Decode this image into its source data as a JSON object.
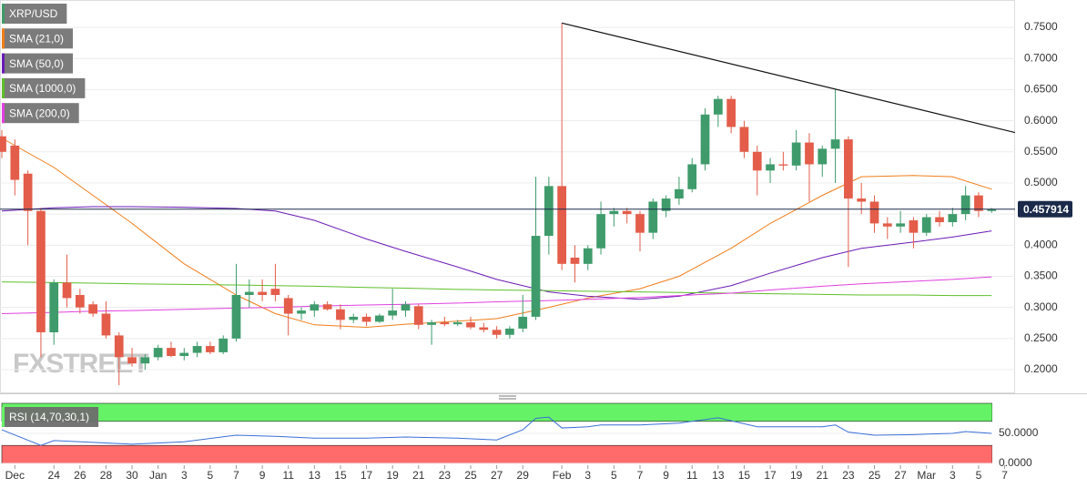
{
  "chart_data": [
    {
      "type": "candlestick",
      "watermark": "FXSTREET",
      "grid": true,
      "xlim": [
        -0.14,
        77.8
      ],
      "xticks": [
        {
          "value": 1,
          "label": "Dec"
        },
        {
          "value": 4,
          "label": "24"
        },
        {
          "value": 6,
          "label": "26"
        },
        {
          "value": 8,
          "label": "28"
        },
        {
          "value": 10,
          "label": "30"
        },
        {
          "value": 12,
          "label": "Jan"
        },
        {
          "value": 14,
          "label": "3"
        },
        {
          "value": 16,
          "label": "5"
        },
        {
          "value": 18,
          "label": "7"
        },
        {
          "value": 20,
          "label": "9"
        },
        {
          "value": 22,
          "label": "11"
        },
        {
          "value": 24,
          "label": "13"
        },
        {
          "value": 26,
          "label": "15"
        },
        {
          "value": 28,
          "label": "17"
        },
        {
          "value": 30,
          "label": "19"
        },
        {
          "value": 32,
          "label": "21"
        },
        {
          "value": 34,
          "label": "23"
        },
        {
          "value": 36,
          "label": "25"
        },
        {
          "value": 38,
          "label": "27"
        },
        {
          "value": 40,
          "label": "29"
        },
        {
          "value": 43,
          "label": "Feb"
        },
        {
          "value": 45,
          "label": "3"
        },
        {
          "value": 47,
          "label": "5"
        },
        {
          "value": 49,
          "label": "7"
        },
        {
          "value": 51,
          "label": "9"
        },
        {
          "value": 53,
          "label": "11"
        },
        {
          "value": 55,
          "label": "13"
        },
        {
          "value": 57,
          "label": "15"
        },
        {
          "value": 59,
          "label": "17"
        },
        {
          "value": 61,
          "label": "19"
        },
        {
          "value": 63,
          "label": "21"
        },
        {
          "value": 65,
          "label": "23"
        },
        {
          "value": 67,
          "label": "25"
        },
        {
          "value": 69,
          "label": "27"
        },
        {
          "value": 71,
          "label": "Mar"
        },
        {
          "value": 73,
          "label": "3"
        },
        {
          "value": 75,
          "label": "5"
        },
        {
          "value": 77,
          "label": "7"
        }
      ],
      "ylim": [
        0.162,
        0.794
      ],
      "yticks": [
        {
          "value": 0.2,
          "label": "0.2000"
        },
        {
          "value": 0.25,
          "label": "0.2500"
        },
        {
          "value": 0.3,
          "label": "0.3000"
        },
        {
          "value": 0.35,
          "label": "0.3500"
        },
        {
          "value": 0.4,
          "label": "0.4000"
        },
        {
          "value": 0.45,
          "label": "0.4500"
        },
        {
          "value": 0.5,
          "label": "0.5000"
        },
        {
          "value": 0.55,
          "label": "0.5500"
        },
        {
          "value": 0.6,
          "label": "0.6000"
        },
        {
          "value": 0.65,
          "label": "0.6500"
        },
        {
          "value": 0.7,
          "label": "0.7000"
        },
        {
          "value": 0.75,
          "label": "0.7500"
        }
      ],
      "candles": {
        "name": "XRP/USD",
        "color": "#3f9b6b",
        "up_color": "#3f9b6b",
        "down_color": "#e35d4a",
        "x": [
          0,
          1,
          2,
          3,
          4,
          5,
          6,
          7,
          8,
          9,
          10,
          11,
          12,
          13,
          14,
          15,
          16,
          17,
          18,
          19,
          20,
          21,
          22,
          23,
          24,
          25,
          26,
          27,
          28,
          29,
          30,
          31,
          32,
          33,
          34,
          35,
          36,
          37,
          38,
          39,
          40,
          41,
          42,
          43,
          44,
          45,
          46,
          47,
          48,
          49,
          50,
          51,
          52,
          53,
          54,
          55,
          56,
          57,
          58,
          59,
          60,
          61,
          62,
          63,
          64,
          65,
          66,
          67,
          68,
          69,
          70,
          71,
          72,
          73,
          74,
          75,
          76
        ],
        "open": [
          0.575,
          0.56,
          0.515,
          0.455,
          0.26,
          0.34,
          0.32,
          0.305,
          0.29,
          0.255,
          0.22,
          0.21,
          0.22,
          0.235,
          0.222,
          0.227,
          0.238,
          0.228,
          0.25,
          0.32,
          0.325,
          0.33,
          0.315,
          0.29,
          0.295,
          0.305,
          0.297,
          0.28,
          0.285,
          0.277,
          0.287,
          0.295,
          0.302,
          0.272,
          0.276,
          0.273,
          0.276,
          0.268,
          0.264,
          0.256,
          0.266,
          0.285,
          0.415,
          0.495,
          0.38,
          0.37,
          0.395,
          0.45,
          0.455,
          0.45,
          0.42,
          0.455,
          0.475,
          0.49,
          0.53,
          0.61,
          0.635,
          0.59,
          0.55,
          0.52,
          0.53,
          0.528,
          0.565,
          0.53,
          0.555,
          0.57,
          0.475,
          0.47,
          0.435,
          0.43,
          0.44,
          0.42,
          0.445,
          0.437,
          0.45,
          0.48,
          0.455
        ],
        "high": [
          0.585,
          0.57,
          0.52,
          0.46,
          0.345,
          0.385,
          0.33,
          0.31,
          0.31,
          0.26,
          0.235,
          0.225,
          0.24,
          0.245,
          0.235,
          0.245,
          0.245,
          0.255,
          0.37,
          0.345,
          0.345,
          0.37,
          0.32,
          0.3,
          0.31,
          0.31,
          0.305,
          0.29,
          0.29,
          0.29,
          0.33,
          0.31,
          0.305,
          0.28,
          0.285,
          0.28,
          0.285,
          0.275,
          0.27,
          0.27,
          0.32,
          0.51,
          0.51,
          0.757,
          0.4,
          0.4,
          0.47,
          0.46,
          0.46,
          0.455,
          0.475,
          0.48,
          0.51,
          0.54,
          0.62,
          0.64,
          0.64,
          0.6,
          0.56,
          0.54,
          0.55,
          0.585,
          0.58,
          0.56,
          0.65,
          0.575,
          0.5,
          0.48,
          0.445,
          0.455,
          0.445,
          0.45,
          0.455,
          0.46,
          0.495,
          0.485,
          0.46
        ],
        "low": [
          0.54,
          0.48,
          0.4,
          0.22,
          0.24,
          0.3,
          0.29,
          0.285,
          0.25,
          0.175,
          0.205,
          0.2,
          0.215,
          0.22,
          0.215,
          0.22,
          0.225,
          0.225,
          0.245,
          0.3,
          0.31,
          0.31,
          0.255,
          0.28,
          0.285,
          0.295,
          0.265,
          0.275,
          0.27,
          0.275,
          0.28,
          0.285,
          0.265,
          0.24,
          0.27,
          0.27,
          0.265,
          0.26,
          0.25,
          0.25,
          0.26,
          0.28,
          0.385,
          0.36,
          0.34,
          0.36,
          0.385,
          0.43,
          0.435,
          0.39,
          0.41,
          0.445,
          0.465,
          0.485,
          0.52,
          0.59,
          0.58,
          0.54,
          0.48,
          0.5,
          0.52,
          0.52,
          0.47,
          0.51,
          0.5,
          0.365,
          0.45,
          0.42,
          0.41,
          0.42,
          0.395,
          0.415,
          0.43,
          0.43,
          0.44,
          0.445,
          0.452
        ],
        "close": [
          0.55,
          0.505,
          0.455,
          0.26,
          0.34,
          0.315,
          0.3,
          0.29,
          0.255,
          0.22,
          0.21,
          0.22,
          0.235,
          0.222,
          0.227,
          0.238,
          0.228,
          0.25,
          0.32,
          0.325,
          0.32,
          0.32,
          0.29,
          0.295,
          0.305,
          0.297,
          0.28,
          0.285,
          0.277,
          0.287,
          0.295,
          0.305,
          0.272,
          0.276,
          0.273,
          0.276,
          0.268,
          0.264,
          0.256,
          0.266,
          0.285,
          0.415,
          0.495,
          0.37,
          0.37,
          0.395,
          0.45,
          0.455,
          0.45,
          0.42,
          0.47,
          0.475,
          0.49,
          0.53,
          0.61,
          0.635,
          0.59,
          0.55,
          0.52,
          0.53,
          0.528,
          0.565,
          0.53,
          0.555,
          0.57,
          0.475,
          0.47,
          0.435,
          0.43,
          0.435,
          0.42,
          0.445,
          0.437,
          0.45,
          0.48,
          0.455,
          0.458
        ]
      },
      "line_x": [
        0,
        4,
        7,
        10,
        14,
        18,
        21,
        24,
        28,
        31,
        35,
        38,
        42,
        45,
        49,
        52,
        56,
        59,
        63,
        66,
        70,
        73,
        76
      ],
      "series": [
        {
          "name": "SMA (21,0)",
          "color": "#f07d1a",
          "values": [
            0.572,
            0.525,
            0.48,
            0.435,
            0.37,
            0.32,
            0.29,
            0.272,
            0.268,
            0.273,
            0.278,
            0.282,
            0.3,
            0.315,
            0.33,
            0.35,
            0.395,
            0.435,
            0.48,
            0.51,
            0.512,
            0.51,
            0.49
          ]
        },
        {
          "name": "SMA (50,0)",
          "color": "#6a1bb5",
          "values": [
            0.455,
            0.46,
            0.462,
            0.462,
            0.461,
            0.459,
            0.455,
            0.44,
            0.41,
            0.39,
            0.365,
            0.345,
            0.325,
            0.318,
            0.313,
            0.318,
            0.335,
            0.355,
            0.38,
            0.395,
            0.405,
            0.413,
            0.423
          ]
        },
        {
          "name": "SMA (1000,0)",
          "color": "#5fbf2a",
          "values": [
            0.341,
            0.34,
            0.339,
            0.338,
            0.337,
            0.336,
            0.335,
            0.334,
            0.332,
            0.331,
            0.329,
            0.328,
            0.327,
            0.326,
            0.325,
            0.324,
            0.323,
            0.322,
            0.321,
            0.32,
            0.32,
            0.319,
            0.319
          ]
        },
        {
          "name": "SMA (200,0)",
          "color": "#e040e0",
          "values": [
            0.29,
            0.292,
            0.294,
            0.295,
            0.297,
            0.299,
            0.3,
            0.302,
            0.304,
            0.305,
            0.307,
            0.309,
            0.311,
            0.313,
            0.316,
            0.319,
            0.323,
            0.328,
            0.334,
            0.338,
            0.342,
            0.345,
            0.349
          ]
        }
      ],
      "last_price": 0.457914,
      "trendline": {
        "color": "#111111",
        "x": [
          43,
          77.8
        ],
        "values": [
          0.757,
          0.581
        ]
      }
    },
    {
      "type": "line",
      "name": "RSI (14,70,30,1)",
      "color": "#3a6fd8",
      "ylim": [
        0,
        100
      ],
      "yticks": [
        {
          "value": 50,
          "label": "50.0000"
        },
        {
          "value": 0,
          "label": "0.0000"
        }
      ],
      "upper_band": 70,
      "lower_band": 30,
      "upper_color": "#66f266",
      "lower_color": "#ff6b6b",
      "x": [
        0,
        3,
        4,
        7,
        10,
        14,
        18,
        21,
        24,
        28,
        31,
        35,
        38,
        40,
        41,
        42,
        43,
        45,
        46,
        49,
        52,
        55,
        56,
        58,
        63,
        64,
        65,
        67,
        70,
        73,
        74,
        76
      ],
      "values": [
        56,
        30,
        38,
        35,
        32,
        36,
        47,
        45,
        42,
        42,
        44,
        42,
        39,
        56,
        75,
        77,
        59,
        61,
        64,
        64,
        67,
        76,
        71,
        61,
        61,
        64,
        52,
        47,
        48,
        50,
        53,
        50
      ]
    }
  ]
}
